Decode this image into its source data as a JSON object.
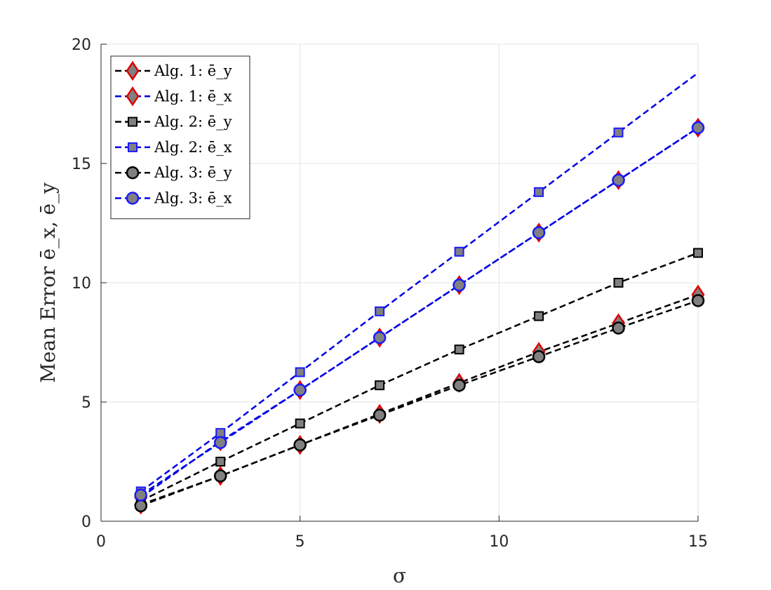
{
  "chart_data": {
    "type": "line",
    "xlabel": "σ",
    "ylabel": "Mean Error ē_x, ē_y",
    "xlim": [
      0,
      15
    ],
    "ylim": [
      0,
      20
    ],
    "xticks": [
      0,
      5,
      10,
      15
    ],
    "yticks": [
      0,
      5,
      10,
      15,
      20
    ],
    "grid": true,
    "legend_position": "top-left",
    "x": [
      1,
      3,
      5,
      7,
      9,
      11,
      13,
      15
    ],
    "series": [
      {
        "name": "Alg. 1: ē_y",
        "line_color": "#000000",
        "marker": "diamond",
        "marker_fill": "#808080",
        "marker_edge": "#e00000",
        "values": [
          0.7,
          1.9,
          3.2,
          4.5,
          5.8,
          7.1,
          8.3,
          9.5
        ]
      },
      {
        "name": "Alg. 1: ē_x",
        "line_color": "#0000e6",
        "marker": "diamond",
        "marker_fill": "#808080",
        "marker_edge": "#e00000",
        "values": [
          1.0,
          3.35,
          5.5,
          7.7,
          9.9,
          12.1,
          14.3,
          16.5
        ]
      },
      {
        "name": "Alg. 2: ē_y",
        "line_color": "#000000",
        "marker": "square",
        "marker_fill": "#808080",
        "marker_edge": "#000000",
        "values": [
          0.85,
          2.5,
          4.1,
          5.7,
          7.2,
          8.6,
          10.0,
          11.25
        ]
      },
      {
        "name": "Alg. 2: ē_x",
        "line_color": "#0000e6",
        "marker": "square",
        "marker_fill": "#808080",
        "marker_edge": "#1a1aff",
        "values": [
          1.25,
          3.7,
          6.25,
          8.8,
          11.3,
          13.8,
          16.3,
          18.8
        ]
      },
      {
        "name": "Alg. 3: ē_y",
        "line_color": "#000000",
        "marker": "circle",
        "marker_fill": "#808080",
        "marker_edge": "#000000",
        "values": [
          0.65,
          1.9,
          3.2,
          4.45,
          5.7,
          6.9,
          8.1,
          9.25
        ]
      },
      {
        "name": "Alg. 3: ē_x",
        "line_color": "#0000e6",
        "marker": "circle",
        "marker_fill": "#808080",
        "marker_edge": "#1a1aff",
        "values": [
          1.1,
          3.3,
          5.5,
          7.7,
          9.9,
          12.1,
          14.3,
          16.5
        ]
      }
    ],
    "marker_x_for_series": {
      "Alg. 2: ē_x": [
        1,
        3,
        5,
        7,
        9,
        11,
        13
      ]
    }
  }
}
